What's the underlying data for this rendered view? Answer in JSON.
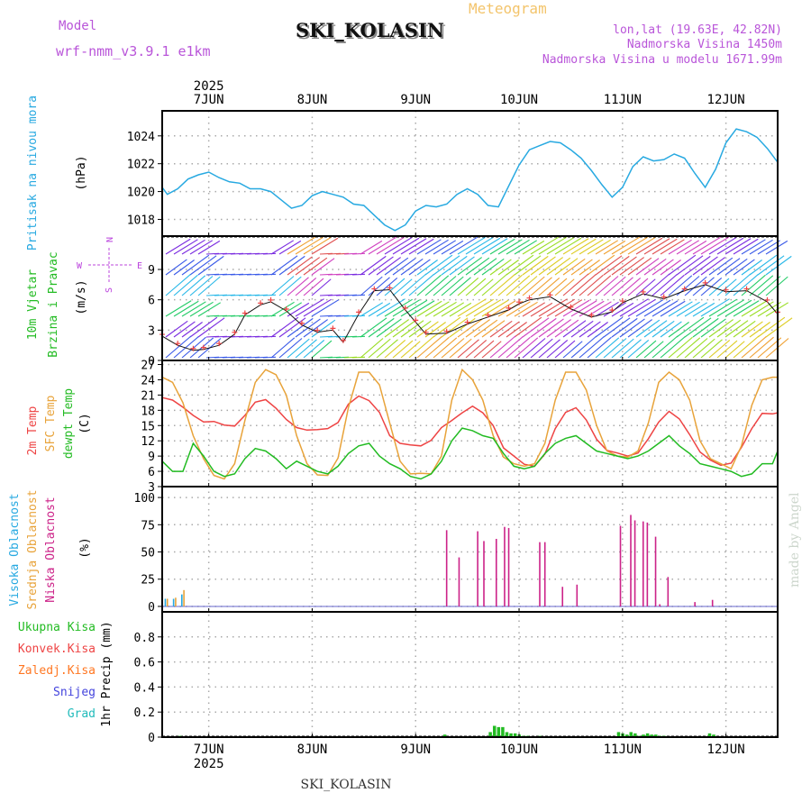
{
  "header": {
    "model_label": "Model",
    "model_name": "wrf-nmm_v3.9.1  e1km",
    "title": "SKI_KOLASIN",
    "subtitle": "Meteogram",
    "coords": "lon,lat (19.63E, 42.82N)",
    "elevation": "Nadmorska Visina 1450m",
    "model_elevation": "Nadmorska Visina u modelu 1671.99m"
  },
  "footer": {
    "station": "SKI_KOLASIN",
    "credit": "made by Angel"
  },
  "colors": {
    "pressure": "#27a9e1",
    "wind_label": "#22bb22",
    "wind_dir": "#bb44dd",
    "temp2m": "#ee4444",
    "sfc": "#e8a33a",
    "dewpt": "#22bb22",
    "cloud_high": "#27a9e1",
    "cloud_mid": "#e8a33a",
    "cloud_low": "#cc2288",
    "precip_total": "#22bb22",
    "precip_conv": "#ee4444",
    "precip_frz": "#ff7722",
    "precip_snow": "#4444dd",
    "precip_grad": "#22bbbb"
  },
  "chart_data": [
    {
      "type": "line",
      "name": "pressure",
      "ylabel_lines": [
        "Pritisak na nivou mora",
        "(hPa)"
      ],
      "ylim": [
        1016.8,
        1025.8
      ],
      "yticks": [
        1018,
        1020,
        1022,
        1024
      ],
      "x_days": [
        {
          "label": "7JUN",
          "year": "2025"
        },
        {
          "label": "8JUN",
          "year": ""
        },
        {
          "label": "9JUN",
          "year": ""
        },
        {
          "label": "10JUN",
          "year": ""
        },
        {
          "label": "11JUN",
          "year": ""
        },
        {
          "label": "12JUN",
          "year": ""
        }
      ],
      "x": [
        6.55,
        6.6,
        6.7,
        6.8,
        6.9,
        7.0,
        7.1,
        7.2,
        7.3,
        7.4,
        7.5,
        7.6,
        7.7,
        7.8,
        7.9,
        8.0,
        8.1,
        8.2,
        8.3,
        8.4,
        8.5,
        8.6,
        8.7,
        8.8,
        8.9,
        9.0,
        9.1,
        9.2,
        9.3,
        9.4,
        9.5,
        9.6,
        9.7,
        9.8,
        9.9,
        10.0,
        10.1,
        10.2,
        10.3,
        10.4,
        10.5,
        10.6,
        10.7,
        10.8,
        10.9,
        11.0,
        11.1,
        11.2,
        11.3,
        11.4,
        11.5,
        11.6,
        11.7,
        11.8,
        11.9,
        12.0,
        12.1,
        12.2,
        12.3,
        12.4,
        12.5
      ],
      "values": [
        1020.3,
        1019.8,
        1020.2,
        1020.9,
        1021.2,
        1021.4,
        1021.0,
        1020.7,
        1020.6,
        1020.2,
        1020.2,
        1020.0,
        1019.4,
        1018.8,
        1019.0,
        1019.7,
        1020.0,
        1019.8,
        1019.6,
        1019.1,
        1019.0,
        1018.3,
        1017.6,
        1017.2,
        1017.6,
        1018.6,
        1019.0,
        1018.9,
        1019.1,
        1019.8,
        1020.2,
        1019.8,
        1019.0,
        1018.9,
        1020.4,
        1021.9,
        1023.0,
        1023.3,
        1023.6,
        1023.5,
        1023.0,
        1022.4,
        1021.5,
        1020.5,
        1019.6,
        1020.3,
        1021.8,
        1022.5,
        1022.2,
        1022.3,
        1022.7,
        1022.4,
        1021.3,
        1020.3,
        1021.6,
        1023.5,
        1024.5,
        1024.3,
        1023.9,
        1023.1,
        1022.1
      ]
    },
    {
      "type": "line",
      "name": "wind",
      "ylabel_lines": [
        "10m Vjetar",
        "Brzina i Pravac",
        "(m/s)"
      ],
      "dir_legend": [
        "N",
        "E",
        "W",
        "S"
      ],
      "ylim": [
        0,
        12.3
      ],
      "yticks": [
        0,
        3,
        6,
        9
      ],
      "x": [
        6.55,
        6.7,
        6.85,
        6.95,
        7.1,
        7.25,
        7.35,
        7.5,
        7.6,
        7.75,
        7.9,
        8.05,
        8.2,
        8.3,
        8.45,
        8.6,
        8.75,
        8.9,
        9.0,
        9.1,
        9.3,
        9.5,
        9.7,
        9.9,
        10.0,
        10.1,
        10.3,
        10.5,
        10.7,
        10.9,
        11.0,
        11.2,
        11.4,
        11.6,
        11.8,
        12.0,
        12.2,
        12.4,
        12.5
      ],
      "values": [
        2.4,
        1.5,
        1.0,
        1.1,
        1.5,
        2.6,
        4.5,
        5.5,
        5.8,
        4.9,
        3.5,
        2.8,
        3.0,
        1.8,
        4.6,
        6.9,
        7.0,
        5.0,
        3.8,
        2.6,
        2.7,
        3.6,
        4.3,
        5.0,
        5.6,
        6.0,
        6.3,
        5.1,
        4.3,
        4.8,
        5.7,
        6.6,
        6.1,
        6.9,
        7.5,
        6.8,
        6.9,
        5.8,
        4.6
      ]
    },
    {
      "type": "line",
      "name": "temperature",
      "ylabel_lines": [
        "2m Temp",
        "SFC Temp",
        "dewpt Temp",
        "(C)"
      ],
      "ylim": [
        3,
        27.8
      ],
      "yticks": [
        3,
        6,
        9,
        12,
        15,
        18,
        21,
        24,
        27
      ],
      "x": [
        6.55,
        6.65,
        6.75,
        6.85,
        6.95,
        7.05,
        7.15,
        7.25,
        7.35,
        7.45,
        7.55,
        7.65,
        7.75,
        7.85,
        7.95,
        8.05,
        8.15,
        8.25,
        8.35,
        8.45,
        8.55,
        8.65,
        8.75,
        8.85,
        8.95,
        9.05,
        9.15,
        9.25,
        9.35,
        9.45,
        9.55,
        9.65,
        9.75,
        9.85,
        9.95,
        10.05,
        10.15,
        10.25,
        10.35,
        10.45,
        10.55,
        10.65,
        10.75,
        10.85,
        10.95,
        11.05,
        11.15,
        11.25,
        11.35,
        11.45,
        11.55,
        11.65,
        11.75,
        11.85,
        11.95,
        12.05,
        12.15,
        12.25,
        12.35,
        12.45,
        12.5
      ],
      "series": [
        {
          "name": "2m Temp",
          "key": "temp2m",
          "values": [
            20.5,
            20.0,
            18.6,
            17.0,
            15.7,
            15.8,
            15.1,
            14.9,
            17.0,
            19.6,
            20.1,
            18.4,
            16.2,
            14.6,
            14.1,
            14.2,
            14.4,
            15.6,
            19.2,
            20.8,
            19.9,
            17.6,
            13.0,
            11.5,
            11.2,
            11.0,
            12.1,
            14.6,
            16.0,
            17.5,
            18.8,
            17.5,
            15.0,
            10.6,
            9.0,
            7.4,
            7.0,
            9.4,
            14.4,
            17.6,
            18.5,
            16.1,
            12.3,
            10.1,
            9.6,
            9.0,
            9.6,
            12.4,
            15.7,
            17.8,
            16.3,
            13.2,
            9.8,
            8.2,
            7.2,
            7.6,
            10.7,
            14.4,
            17.4,
            17.3,
            17.5
          ]
        },
        {
          "name": "SFC Temp",
          "key": "sfc",
          "values": [
            24.5,
            23.5,
            19.5,
            13.0,
            8.5,
            5.2,
            4.5,
            7.5,
            16.0,
            23.5,
            26.0,
            25.0,
            21.0,
            13.0,
            7.5,
            5.3,
            5.2,
            8.6,
            18.5,
            25.5,
            25.5,
            23.0,
            15.5,
            8.0,
            5.5,
            5.6,
            5.5,
            9.0,
            20.0,
            26.0,
            24.0,
            20.0,
            13.0,
            8.8,
            7.5,
            7.0,
            7.5,
            11.5,
            20.0,
            25.5,
            25.5,
            22.0,
            15.0,
            10.0,
            9.0,
            8.8,
            10.0,
            15.5,
            23.5,
            25.5,
            24.0,
            20.0,
            12.0,
            8.5,
            7.5,
            6.5,
            11.0,
            19.0,
            24.0,
            24.5,
            24.5
          ]
        },
        {
          "name": "dewpt Temp",
          "key": "dewpt",
          "values": [
            8.0,
            6.0,
            6.0,
            11.5,
            9.0,
            6.0,
            5.0,
            5.5,
            8.5,
            10.5,
            10.0,
            8.5,
            6.5,
            8.0,
            7.0,
            6.0,
            5.5,
            7.0,
            9.5,
            11.0,
            11.5,
            9.0,
            7.5,
            6.5,
            5.0,
            4.5,
            5.5,
            8.0,
            12.0,
            14.5,
            14.0,
            13.0,
            12.5,
            9.5,
            7.0,
            6.5,
            7.0,
            9.5,
            11.5,
            12.5,
            13.0,
            11.5,
            10.0,
            9.5,
            9.0,
            8.5,
            9.0,
            10.0,
            11.5,
            13.0,
            11.0,
            9.5,
            7.5,
            7.0,
            6.5,
            6.0,
            5.0,
            5.5,
            7.5,
            7.5,
            10.0
          ]
        }
      ]
    },
    {
      "type": "bar",
      "name": "cloud",
      "ylabel_lines": [
        "Visoka Oblacnost",
        "Srednja Oblacnost",
        "Niska Oblacnost",
        "(%)"
      ],
      "ylim": [
        -5,
        110
      ],
      "yticks": [
        0,
        25,
        50,
        75,
        100
      ],
      "series": [
        {
          "name": "Visoka Oblacnost",
          "key": "cloud_high",
          "x": [
            6.58,
            6.66,
            6.74
          ],
          "values": [
            7,
            7,
            11
          ]
        },
        {
          "name": "Srednja Oblacnost",
          "key": "cloud_mid",
          "x": [
            6.6,
            6.68,
            6.76
          ],
          "values": [
            7,
            8,
            15
          ]
        },
        {
          "name": "Niska Oblacnost",
          "key": "cloud_low",
          "x": [
            9.3,
            9.42,
            9.6,
            9.66,
            9.78,
            9.86,
            9.9,
            10.2,
            10.25,
            10.42,
            10.56,
            10.98,
            11.08,
            11.12,
            11.2,
            11.24,
            11.32,
            11.36,
            11.44,
            11.7,
            11.87,
            11.92
          ],
          "values": [
            70,
            45,
            69,
            60,
            62,
            73,
            72,
            59,
            59,
            18,
            20,
            74,
            84,
            79,
            78,
            77,
            64,
            2,
            27,
            4,
            6,
            0
          ]
        }
      ]
    },
    {
      "type": "bar",
      "name": "precip",
      "ylabel_lines": [
        "1hr Precip (mm)"
      ],
      "legend": [
        "Ukupna Kisa",
        "Konvek.Kisa",
        "Zaledj.Kisa",
        "Snijeg",
        "Grad"
      ],
      "ylim": [
        0,
        1.0
      ],
      "yticks": [
        0,
        0.2,
        0.4,
        0.6,
        0.8
      ],
      "series": [
        {
          "name": "Ukupna Kisa",
          "key": "precip_total",
          "x": [
            6.72,
            9.28,
            9.72,
            9.76,
            9.8,
            9.84,
            9.88,
            9.92,
            9.96,
            10.0,
            10.04,
            10.08,
            10.2,
            10.96,
            11.0,
            11.04,
            11.08,
            11.12,
            11.16,
            11.2,
            11.24,
            11.28,
            11.32,
            11.36,
            11.4,
            11.84,
            11.88
          ],
          "values": [
            0.01,
            0.02,
            0.04,
            0.09,
            0.08,
            0.08,
            0.04,
            0.03,
            0.03,
            0.02,
            0.01,
            0.01,
            0.01,
            0.04,
            0.03,
            0.02,
            0.04,
            0.03,
            0.01,
            0.02,
            0.03,
            0.02,
            0.02,
            0.01,
            0.01,
            0.03,
            0.02
          ]
        }
      ]
    }
  ]
}
